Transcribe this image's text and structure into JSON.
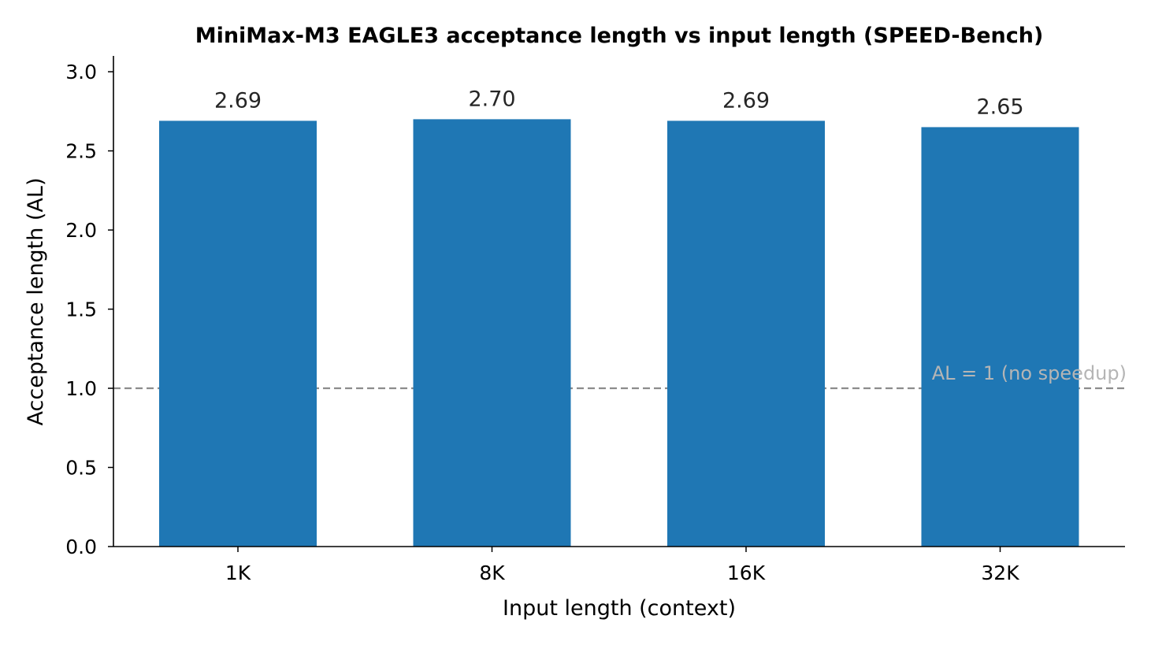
{
  "chart_data": {
    "type": "bar",
    "title": "MiniMax-M3 EAGLE3 acceptance length vs input length (SPEED-Bench)",
    "xlabel": "Input length (context)",
    "ylabel": "Acceptance length (AL)",
    "categories": [
      "1K",
      "8K",
      "16K",
      "32K"
    ],
    "values": [
      2.69,
      2.7,
      2.69,
      2.65
    ],
    "value_labels": [
      "2.69",
      "2.70",
      "2.69",
      "2.65"
    ],
    "ylim": [
      0,
      3.1
    ],
    "yticks": [
      0.0,
      0.5,
      1.0,
      1.5,
      2.0,
      2.5,
      3.0
    ],
    "ytick_labels": [
      "0.0",
      "0.5",
      "1.0",
      "1.5",
      "2.0",
      "2.5",
      "3.0"
    ],
    "bar_color": "#1f77b4",
    "grid": false,
    "reference_line": {
      "y": 1.0,
      "label": "AL = 1 (no speedup)",
      "color": "#8c8c8c",
      "style": "dashed"
    }
  }
}
